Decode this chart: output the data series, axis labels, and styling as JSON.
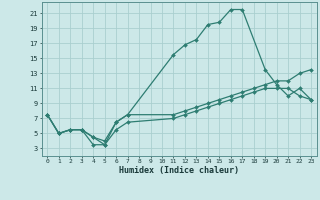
{
  "xlabel": "Humidex (Indice chaleur)",
  "bg_color": "#cce8e8",
  "line_color": "#2e7d72",
  "grid_color": "#aacfcf",
  "xlim": [
    -0.5,
    23.5
  ],
  "ylim": [
    2,
    22.5
  ],
  "yticks": [
    3,
    5,
    7,
    9,
    11,
    13,
    15,
    17,
    19,
    21
  ],
  "xticks": [
    0,
    1,
    2,
    3,
    4,
    5,
    6,
    7,
    8,
    9,
    10,
    11,
    12,
    13,
    14,
    15,
    16,
    17,
    18,
    19,
    20,
    21,
    22,
    23
  ],
  "line1_x": [
    0,
    1,
    2,
    3,
    4,
    5,
    6,
    7,
    11,
    12,
    13,
    14,
    15,
    16,
    17,
    19,
    20,
    21,
    22,
    23
  ],
  "line1_y": [
    7.5,
    5,
    5.5,
    5.5,
    4.5,
    3.5,
    6.5,
    7.5,
    15.5,
    16.8,
    17.5,
    19.5,
    19.8,
    21.5,
    21.5,
    13.5,
    11.5,
    10,
    11,
    9.5
  ],
  "line2_x": [
    0,
    1,
    2,
    3,
    4,
    5,
    6,
    7,
    11,
    12,
    13,
    14,
    15,
    16,
    17,
    18,
    19,
    20,
    21,
    22,
    23
  ],
  "line2_y": [
    7.5,
    5,
    5.5,
    5.5,
    4.5,
    4,
    6.5,
    7.5,
    7.5,
    8,
    8.5,
    9,
    9.5,
    10,
    10.5,
    11,
    11.5,
    12,
    12,
    13,
    13.5
  ],
  "line3_x": [
    0,
    1,
    2,
    3,
    4,
    5,
    6,
    7,
    11,
    12,
    13,
    14,
    15,
    16,
    17,
    18,
    19,
    20,
    21,
    22,
    23
  ],
  "line3_y": [
    7.5,
    5,
    5.5,
    5.5,
    3.5,
    3.5,
    5.5,
    6.5,
    7,
    7.5,
    8,
    8.5,
    9,
    9.5,
    10,
    10.5,
    11,
    11,
    11,
    10,
    9.5
  ]
}
